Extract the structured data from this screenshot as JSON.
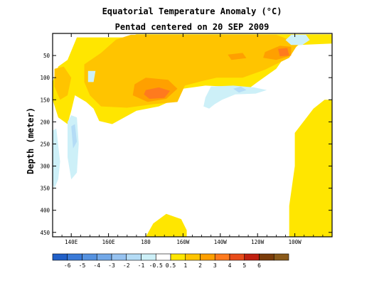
{
  "chart_data": {
    "type": "heatmap",
    "title": "Equatorial Temperature Anomaly (°C)",
    "subtitle": "Pentad centered on 20 SEP 2009",
    "ylabel": "Depth (meter)",
    "xlabel": "",
    "x_ticks": [
      "140E",
      "160E",
      "180",
      "160W",
      "140W",
      "120W",
      "100W"
    ],
    "x_tick_values": [
      140,
      160,
      180,
      200,
      220,
      240,
      260
    ],
    "xlim": [
      130,
      280
    ],
    "y_ticks": [
      "50",
      "100",
      "150",
      "200",
      "250",
      "300",
      "350",
      "400",
      "450"
    ],
    "y_tick_values": [
      50,
      100,
      150,
      200,
      250,
      300,
      350,
      400,
      450
    ],
    "ylim": [
      0,
      460
    ],
    "y_reversed": true,
    "colorbar": {
      "labels": [
        "-6",
        "-5",
        "-4",
        "-3",
        "-2",
        "-1",
        "-0.5",
        "0.5",
        "1",
        "2",
        "3",
        "4",
        "5",
        "6"
      ],
      "colors": [
        "#2160c8",
        "#3a7ad8",
        "#5592e0",
        "#72a8e8",
        "#96c2f0",
        "#b4dcf6",
        "#cdf0f8",
        "#ffffff",
        "#ffe600",
        "#ffc400",
        "#ffa000",
        "#ff7a1e",
        "#e84c1a",
        "#c02010",
        "#7a3c0a",
        "#8a5a1a"
      ]
    },
    "anomaly_regions": [
      {
        "level": 1,
        "value": 0.75,
        "points": [
          [
            143,
            9
          ],
          [
            170,
            9
          ],
          [
            175,
            2
          ],
          [
            280,
            2
          ],
          [
            280,
            23
          ],
          [
            262,
            26
          ],
          [
            255,
            50
          ],
          [
            250,
            80
          ],
          [
            240,
            110
          ],
          [
            232,
            135
          ],
          [
            222,
            120
          ],
          [
            212,
            118
          ],
          [
            200,
            125
          ],
          [
            195,
            150
          ],
          [
            187,
            165
          ],
          [
            175,
            175
          ],
          [
            162,
            205
          ],
          [
            155,
            198
          ],
          [
            152,
            170
          ],
          [
            148,
            155
          ],
          [
            142,
            140
          ],
          [
            140,
            175
          ],
          [
            138,
            205
          ],
          [
            133,
            190
          ],
          [
            130,
            150
          ],
          [
            130,
            110
          ],
          [
            133,
            75
          ],
          [
            138,
            60
          ]
        ]
      },
      {
        "level": 2,
        "value": 1.5,
        "points": [
          [
            147,
            70
          ],
          [
            156,
            44
          ],
          [
            164,
            14
          ],
          [
            172,
            3
          ],
          [
            250,
            3
          ],
          [
            262,
            22
          ],
          [
            257,
            55
          ],
          [
            244,
            82
          ],
          [
            232,
            100
          ],
          [
            218,
            100
          ],
          [
            210,
            108
          ],
          [
            201,
            118
          ],
          [
            197,
            155
          ],
          [
            184,
            160
          ],
          [
            170,
            168
          ],
          [
            156,
            165
          ],
          [
            150,
            140
          ],
          [
            147,
            110
          ]
        ]
      },
      {
        "level": 2,
        "value": 1.5,
        "points": [
          [
            131,
            80
          ],
          [
            136,
            75
          ],
          [
            140,
            100
          ],
          [
            138,
            140
          ],
          [
            134,
            150
          ],
          [
            131,
            120
          ]
        ]
      },
      {
        "level": 3,
        "value": 2.5,
        "points": [
          [
            174,
            115
          ],
          [
            180,
            100
          ],
          [
            192,
            105
          ],
          [
            197,
            125
          ],
          [
            191,
            148
          ],
          [
            181,
            155
          ],
          [
            173,
            140
          ]
        ]
      },
      {
        "level": 3,
        "value": 2.5,
        "points": [
          [
            244,
            42
          ],
          [
            252,
            28
          ],
          [
            258,
            30
          ],
          [
            258,
            50
          ],
          [
            250,
            60
          ],
          [
            243,
            55
          ]
        ]
      },
      {
        "level": 3,
        "value": 2.5,
        "points": [
          [
            224,
            48
          ],
          [
            232,
            44
          ],
          [
            234,
            56
          ],
          [
            226,
            60
          ]
        ]
      },
      {
        "level": 4,
        "value": 3.5,
        "points": [
          [
            180,
            128
          ],
          [
            187,
            122
          ],
          [
            193,
            130
          ],
          [
            190,
            146
          ],
          [
            182,
            148
          ],
          [
            179,
            138
          ]
        ]
      },
      {
        "level": 4,
        "value": 3.5,
        "points": [
          [
            251,
            35
          ],
          [
            256,
            33
          ],
          [
            257,
            50
          ],
          [
            252,
            52
          ]
        ]
      },
      {
        "level": 1,
        "value": 0.75,
        "points": [
          [
            260,
            225
          ],
          [
            270,
            170
          ],
          [
            276,
            150
          ],
          [
            280,
            150
          ],
          [
            280,
            460
          ],
          [
            257,
            460
          ],
          [
            257,
            390
          ],
          [
            260,
            300
          ]
        ]
      },
      {
        "level": 1,
        "value": 0.75,
        "points": [
          [
            180,
            460
          ],
          [
            184,
            430
          ],
          [
            191,
            408
          ],
          [
            199,
            420
          ],
          [
            202,
            445
          ],
          [
            202,
            460
          ]
        ]
      },
      {
        "level": -1,
        "value": -0.75,
        "points": [
          [
            212,
            145
          ],
          [
            215,
            120
          ],
          [
            227,
            118
          ],
          [
            238,
            122
          ],
          [
            245,
            128
          ],
          [
            239,
            136
          ],
          [
            228,
            138
          ],
          [
            221,
            150
          ],
          [
            217,
            160
          ],
          [
            214,
            170
          ],
          [
            211,
            165
          ]
        ]
      },
      {
        "level": -2,
        "value": -1.5,
        "points": [
          [
            227,
            125
          ],
          [
            231,
            120
          ],
          [
            234,
            128
          ],
          [
            230,
            134
          ]
        ]
      },
      {
        "level": -1,
        "value": -0.75,
        "points": [
          [
            138,
            200
          ],
          [
            140,
            185
          ],
          [
            143,
            190
          ],
          [
            144,
            250
          ],
          [
            143,
            315
          ],
          [
            140,
            330
          ],
          [
            138,
            280
          ]
        ]
      },
      {
        "level": -2,
        "value": -1.5,
        "points": [
          [
            140,
            210
          ],
          [
            142,
            205
          ],
          [
            143,
            245
          ],
          [
            141,
            260
          ]
        ]
      },
      {
        "level": -1,
        "value": -0.75,
        "points": [
          [
            130,
            220
          ],
          [
            132,
            215
          ],
          [
            134,
            290
          ],
          [
            133,
            330
          ],
          [
            131,
            350
          ],
          [
            130,
            340
          ]
        ]
      },
      {
        "level": -1,
        "value": -0.75,
        "points": [
          [
            258,
            3
          ],
          [
            266,
            3
          ],
          [
            268,
            15
          ],
          [
            264,
            26
          ],
          [
            258,
            26
          ],
          [
            255,
            15
          ]
        ]
      },
      {
        "level": -1,
        "value": -0.75,
        "points": [
          [
            149,
            85
          ],
          [
            153,
            85
          ],
          [
            152,
            110
          ],
          [
            149,
            110
          ]
        ]
      }
    ]
  }
}
